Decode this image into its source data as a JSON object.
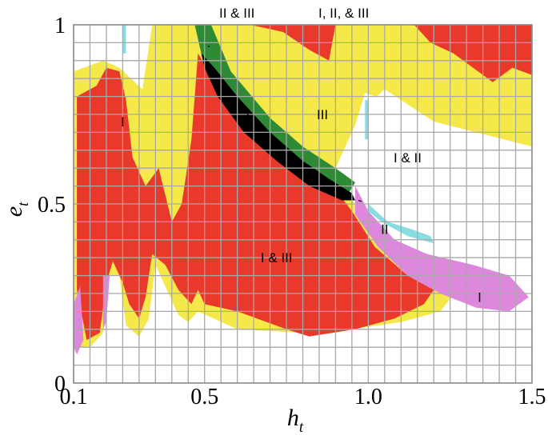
{
  "chart_data": {
    "type": "heatmap",
    "x_label": {
      "base": "h",
      "subscript": "t"
    },
    "y_label": {
      "base": "e",
      "subscript": "t"
    },
    "xlim": [
      0.1,
      1.5
    ],
    "ylim": [
      0,
      1
    ],
    "x_ticks": [
      {
        "value": 0.1,
        "label": "0.1"
      },
      {
        "value": 0.5,
        "label": "0.5"
      },
      {
        "value": 1.0,
        "label": "1.0"
      },
      {
        "value": 1.5,
        "label": "1.5"
      }
    ],
    "y_ticks": [
      {
        "value": 0,
        "label": "0"
      },
      {
        "value": 0.5,
        "label": "0.5"
      },
      {
        "value": 1,
        "label": "1"
      }
    ],
    "grid": true,
    "grid_step": {
      "x": 0.05,
      "y": 0.05
    },
    "colors": {
      "I": "#e8392a",
      "I & III": "#f5e94a",
      "I & II": "#dd88dd",
      "II": "#88dde0",
      "II & III": "#2f8a35",
      "I, II, & III": "#000000",
      "III": "#ffffff",
      "grid": "#a8a8a8"
    },
    "regions": [
      {
        "name": "I & III",
        "color_key": "I & III",
        "points": [
          [
            0.1,
            0.87
          ],
          [
            0.19,
            0.9
          ],
          [
            0.24,
            0.88
          ],
          [
            0.31,
            0.82
          ],
          [
            0.34,
            1.0
          ],
          [
            1.0,
            1.0
          ],
          [
            1.5,
            1.0
          ],
          [
            1.5,
            0.66
          ],
          [
            1.2,
            0.73
          ],
          [
            1.05,
            0.82
          ],
          [
            0.98,
            0.76
          ],
          [
            0.93,
            0.65
          ],
          [
            0.9,
            0.56
          ],
          [
            0.96,
            0.5
          ],
          [
            1.05,
            0.4
          ],
          [
            1.15,
            0.32
          ],
          [
            1.28,
            0.27
          ],
          [
            1.22,
            0.2
          ],
          [
            1.1,
            0.17
          ],
          [
            0.95,
            0.15
          ],
          [
            0.8,
            0.14
          ],
          [
            0.6,
            0.15
          ],
          [
            0.48,
            0.2
          ],
          [
            0.45,
            0.17
          ],
          [
            0.42,
            0.19
          ],
          [
            0.35,
            0.33
          ],
          [
            0.33,
            0.18
          ],
          [
            0.3,
            0.13
          ],
          [
            0.26,
            0.16
          ],
          [
            0.24,
            0.3
          ],
          [
            0.2,
            0.3
          ],
          [
            0.19,
            0.14
          ],
          [
            0.15,
            0.1
          ],
          [
            0.11,
            0.1
          ],
          [
            0.1,
            0.2
          ]
        ]
      },
      {
        "name": "I",
        "color_key": "I",
        "points": [
          [
            0.11,
            0.8
          ],
          [
            0.17,
            0.83
          ],
          [
            0.2,
            0.88
          ],
          [
            0.24,
            0.87
          ],
          [
            0.26,
            0.79
          ],
          [
            0.28,
            0.63
          ],
          [
            0.32,
            0.55
          ],
          [
            0.36,
            0.6
          ],
          [
            0.4,
            0.45
          ],
          [
            0.43,
            0.5
          ],
          [
            0.46,
            0.68
          ],
          [
            0.48,
            0.92
          ],
          [
            0.52,
            0.86
          ],
          [
            0.6,
            0.76
          ],
          [
            0.7,
            0.68
          ],
          [
            0.8,
            0.58
          ],
          [
            0.9,
            0.54
          ],
          [
            0.95,
            0.48
          ],
          [
            1.02,
            0.38
          ],
          [
            1.12,
            0.3
          ],
          [
            1.2,
            0.26
          ],
          [
            1.17,
            0.22
          ],
          [
            1.08,
            0.18
          ],
          [
            0.96,
            0.15
          ],
          [
            0.82,
            0.13
          ],
          [
            0.75,
            0.15
          ],
          [
            0.6,
            0.2
          ],
          [
            0.5,
            0.22
          ],
          [
            0.48,
            0.26
          ],
          [
            0.46,
            0.22
          ],
          [
            0.42,
            0.26
          ],
          [
            0.38,
            0.33
          ],
          [
            0.34,
            0.36
          ],
          [
            0.32,
            0.24
          ],
          [
            0.3,
            0.18
          ],
          [
            0.27,
            0.22
          ],
          [
            0.25,
            0.28
          ],
          [
            0.22,
            0.34
          ],
          [
            0.2,
            0.28
          ],
          [
            0.18,
            0.14
          ],
          [
            0.14,
            0.12
          ],
          [
            0.11,
            0.26
          ]
        ]
      },
      {
        "name": "I (upper right)",
        "color_key": "I",
        "points": [
          [
            1.14,
            1.0
          ],
          [
            1.5,
            1.0
          ],
          [
            1.5,
            0.86
          ],
          [
            1.44,
            0.88
          ],
          [
            1.38,
            0.84
          ],
          [
            1.32,
            0.88
          ],
          [
            1.26,
            0.92
          ],
          [
            1.19,
            0.95
          ]
        ]
      },
      {
        "name": "I (upper middle)",
        "color_key": "I",
        "points": [
          [
            0.64,
            1.0
          ],
          [
            0.9,
            1.0
          ],
          [
            0.88,
            0.9
          ],
          [
            0.82,
            0.93
          ],
          [
            0.74,
            0.98
          ]
        ]
      },
      {
        "name": "III (white gap)",
        "color_key": "III",
        "points": [
          [
            0.9,
            0.6
          ],
          [
            0.96,
            0.72
          ],
          [
            0.99,
            0.81
          ],
          [
            1.02,
            0.8
          ],
          [
            1.08,
            0.73
          ],
          [
            1.18,
            0.7
          ],
          [
            1.3,
            0.67
          ],
          [
            1.5,
            0.64
          ],
          [
            1.5,
            0.28
          ],
          [
            1.28,
            0.33
          ],
          [
            1.16,
            0.38
          ],
          [
            1.06,
            0.44
          ],
          [
            0.98,
            0.51
          ]
        ]
      },
      {
        "name": "III (white left)",
        "color_key": "III",
        "points": [
          [
            0.3,
            1.0
          ],
          [
            0.34,
            1.0
          ],
          [
            0.32,
            0.88
          ],
          [
            0.29,
            0.92
          ]
        ]
      },
      {
        "name": "III (white left 2)",
        "color_key": "III",
        "points": [
          [
            0.22,
            1.0
          ],
          [
            0.27,
            1.0
          ],
          [
            0.25,
            0.93
          ],
          [
            0.22,
            0.95
          ]
        ]
      },
      {
        "name": "I & II",
        "color_key": "I & II",
        "points": [
          [
            0.96,
            0.55
          ],
          [
            1.0,
            0.48
          ],
          [
            1.08,
            0.4
          ],
          [
            1.18,
            0.36
          ],
          [
            1.32,
            0.33
          ],
          [
            1.43,
            0.3
          ],
          [
            1.49,
            0.24
          ],
          [
            1.43,
            0.2
          ],
          [
            1.33,
            0.21
          ],
          [
            1.22,
            0.25
          ],
          [
            1.12,
            0.3
          ],
          [
            1.03,
            0.38
          ],
          [
            0.96,
            0.47
          ]
        ]
      },
      {
        "name": "I & II (left)",
        "color_key": "I & II",
        "points": [
          [
            0.1,
            0.22
          ],
          [
            0.12,
            0.27
          ],
          [
            0.13,
            0.12
          ],
          [
            0.11,
            0.08
          ],
          [
            0.1,
            0.1
          ]
        ]
      },
      {
        "name": "I & II (left 2)",
        "color_key": "I & II",
        "points": [
          [
            0.19,
            0.3
          ],
          [
            0.21,
            0.3
          ],
          [
            0.2,
            0.17
          ],
          [
            0.19,
            0.15
          ]
        ]
      },
      {
        "name": "II",
        "color_key": "II",
        "points": [
          [
            1.0,
            0.5
          ],
          [
            1.06,
            0.45
          ],
          [
            1.13,
            0.43
          ],
          [
            1.19,
            0.41
          ],
          [
            1.2,
            0.39
          ],
          [
            1.12,
            0.41
          ],
          [
            1.04,
            0.45
          ],
          [
            1.0,
            0.48
          ]
        ]
      },
      {
        "name": "II (vertical near 1.0)",
        "color_key": "II",
        "points": [
          [
            0.99,
            0.79
          ],
          [
            1.0,
            0.79
          ],
          [
            1.0,
            0.68
          ],
          [
            0.99,
            0.68
          ]
        ]
      },
      {
        "name": "II (top left)",
        "color_key": "II",
        "points": [
          [
            0.25,
            1.0
          ],
          [
            0.26,
            1.0
          ],
          [
            0.26,
            0.92
          ],
          [
            0.25,
            0.92
          ]
        ]
      },
      {
        "name": "II & III",
        "color_key": "II & III",
        "points": [
          [
            0.47,
            1.0
          ],
          [
            0.52,
            1.0
          ],
          [
            0.58,
            0.87
          ],
          [
            0.7,
            0.74
          ],
          [
            0.8,
            0.66
          ],
          [
            0.9,
            0.6
          ],
          [
            0.96,
            0.56
          ],
          [
            0.94,
            0.53
          ],
          [
            0.86,
            0.56
          ],
          [
            0.76,
            0.6
          ],
          [
            0.66,
            0.69
          ],
          [
            0.56,
            0.78
          ],
          [
            0.5,
            0.88
          ]
        ]
      },
      {
        "name": "I, II, & III",
        "color_key": "I, II, & III",
        "points": [
          [
            0.49,
            0.92
          ],
          [
            0.53,
            0.88
          ],
          [
            0.6,
            0.8
          ],
          [
            0.7,
            0.7
          ],
          [
            0.8,
            0.62
          ],
          [
            0.88,
            0.57
          ],
          [
            0.95,
            0.53
          ],
          [
            0.96,
            0.51
          ],
          [
            0.92,
            0.51
          ],
          [
            0.82,
            0.55
          ],
          [
            0.72,
            0.62
          ],
          [
            0.62,
            0.7
          ],
          [
            0.54,
            0.8
          ],
          [
            0.5,
            0.88
          ]
        ]
      }
    ],
    "annotations": [
      {
        "text": "II & III",
        "pointer": [
          0.51,
          0.94
        ]
      },
      {
        "text": "I, II, & III",
        "pointer": [
          0.64,
          0.74
        ]
      },
      {
        "text": "III",
        "at": [
          0.86,
          0.75
        ]
      },
      {
        "text": "I",
        "at": [
          0.25,
          0.73
        ]
      },
      {
        "text": "I & II",
        "pointer": [
          0.97,
          0.51
        ]
      },
      {
        "text": "II",
        "at": [
          1.05,
          0.43
        ]
      },
      {
        "text": "I & III",
        "at": [
          0.72,
          0.35
        ]
      },
      {
        "text": "I",
        "at": [
          1.34,
          0.24
        ]
      }
    ]
  }
}
